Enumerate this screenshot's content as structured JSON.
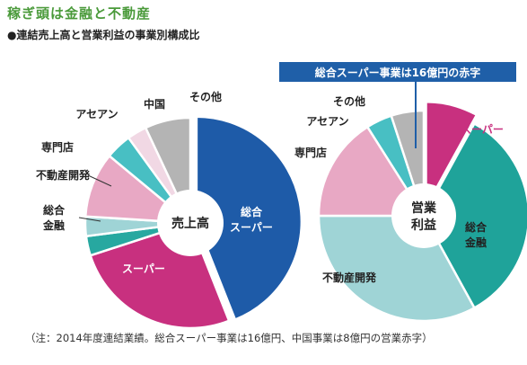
{
  "title": "稼ぎ頭は金融と不動産",
  "subtitle": "●連結売上高と営業利益の事業別構成比",
  "callout": "総合スーパー事業は16億円の赤字",
  "note": "（注：2014年度連結業績。総合スーパー事業は16億円、中国事業は8億円の営業赤字）",
  "chart_data": [
    {
      "type": "pie",
      "center_label": "売上高",
      "slices": [
        {
          "name": "総合スーパー",
          "value": 44,
          "color": "#1e5ba8",
          "label_lines": [
            "総合",
            "スーパー"
          ]
        },
        {
          "name": "スーパー",
          "value": 26,
          "color": "#c8307f",
          "label_lines": [
            "スーパー"
          ]
        },
        {
          "name": "総合金融",
          "value": 3,
          "color": "#27a8a0",
          "label_lines": [
            "総合",
            "金融"
          ]
        },
        {
          "name": "不動産開発",
          "value": 3,
          "color": "#9fd4d6",
          "label_lines": [
            "不動産開発"
          ]
        },
        {
          "name": "専門店",
          "value": 10,
          "color": "#e8a8c4",
          "label_lines": [
            "専門店"
          ]
        },
        {
          "name": "アセアン",
          "value": 4,
          "color": "#48bfc3",
          "label_lines": [
            "アセアン"
          ]
        },
        {
          "name": "中国",
          "value": 3,
          "color": "#f1d8e4",
          "label_lines": [
            "中国"
          ]
        },
        {
          "name": "その他",
          "value": 7,
          "color": "#b4b4b4",
          "label_lines": [
            "その他"
          ]
        }
      ]
    },
    {
      "type": "pie",
      "center_label": "営業利益",
      "slices": [
        {
          "name": "スーパー",
          "value": 8,
          "color": "#c8307f",
          "label_lines": [
            "スーパー"
          ]
        },
        {
          "name": "総合金融",
          "value": 34,
          "color": "#1fa39a",
          "label_lines": [
            "総合",
            "金融"
          ]
        },
        {
          "name": "不動産開発",
          "value": 33,
          "color": "#9fd4d6",
          "label_lines": [
            "不動産開発"
          ]
        },
        {
          "name": "専門店",
          "value": 16,
          "color": "#e8a8c4",
          "label_lines": [
            "専門店"
          ]
        },
        {
          "name": "アセアン",
          "value": 4,
          "color": "#48bfc3",
          "label_lines": [
            "アセアン"
          ]
        },
        {
          "name": "その他",
          "value": 5,
          "color": "#b4b4b4",
          "label_lines": [
            "その他"
          ]
        }
      ]
    }
  ]
}
